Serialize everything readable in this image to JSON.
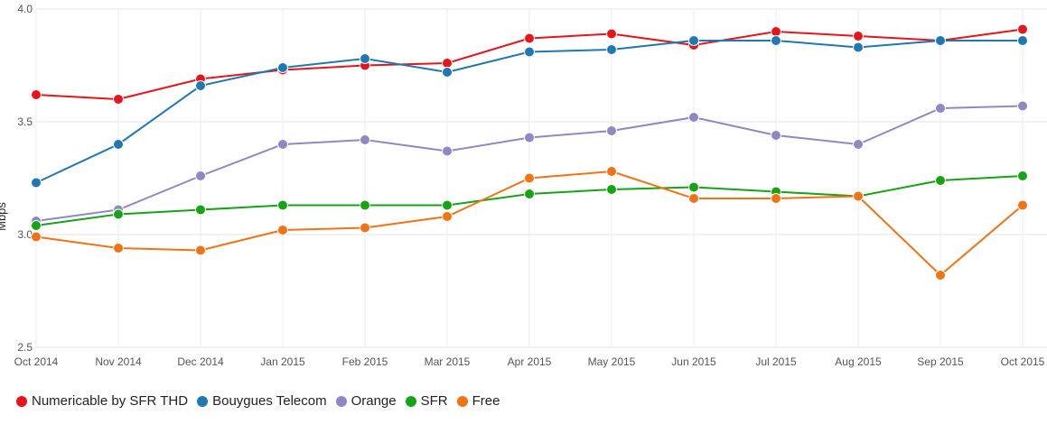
{
  "chart_data": {
    "type": "line",
    "title": "",
    "xlabel": "",
    "ylabel": "Mbps",
    "ylim": [
      2.5,
      4.0
    ],
    "yticks": [
      "2.5",
      "3.0",
      "3.5",
      "4.0"
    ],
    "grid": true,
    "legend_position": "bottom-left",
    "categories": [
      "Oct 2014",
      "Nov 2014",
      "Dec 2014",
      "Jan 2015",
      "Feb 2015",
      "Mar 2015",
      "Apr 2015",
      "May 2015",
      "Jun 2015",
      "Jul 2015",
      "Aug 2015",
      "Sep 2015",
      "Oct 2015"
    ],
    "series": [
      {
        "name": "Numericable by SFR THD",
        "color": "#e8141b",
        "values": [
          3.62,
          3.6,
          3.69,
          3.73,
          3.75,
          3.76,
          3.87,
          3.89,
          3.84,
          3.9,
          3.88,
          3.86,
          3.91
        ]
      },
      {
        "name": "Bouygues Telecom",
        "color": "#1f77b4",
        "values": [
          3.23,
          3.4,
          3.66,
          3.74,
          3.78,
          3.72,
          3.81,
          3.82,
          3.86,
          3.86,
          3.83,
          3.86,
          3.86
        ]
      },
      {
        "name": "Orange",
        "color": "#8f88c4",
        "values": [
          3.06,
          3.11,
          3.26,
          3.4,
          3.42,
          3.37,
          3.43,
          3.46,
          3.52,
          3.44,
          3.4,
          3.56,
          3.57
        ]
      },
      {
        "name": "SFR",
        "color": "#14a414",
        "values": [
          3.04,
          3.09,
          3.11,
          3.13,
          3.13,
          3.13,
          3.18,
          3.2,
          3.21,
          3.19,
          3.17,
          3.24,
          3.26
        ]
      },
      {
        "name": "Free",
        "color": "#f27214",
        "values": [
          2.99,
          2.94,
          2.93,
          3.02,
          3.03,
          3.08,
          3.25,
          3.28,
          3.16,
          3.16,
          3.17,
          2.82,
          3.13
        ]
      }
    ]
  }
}
